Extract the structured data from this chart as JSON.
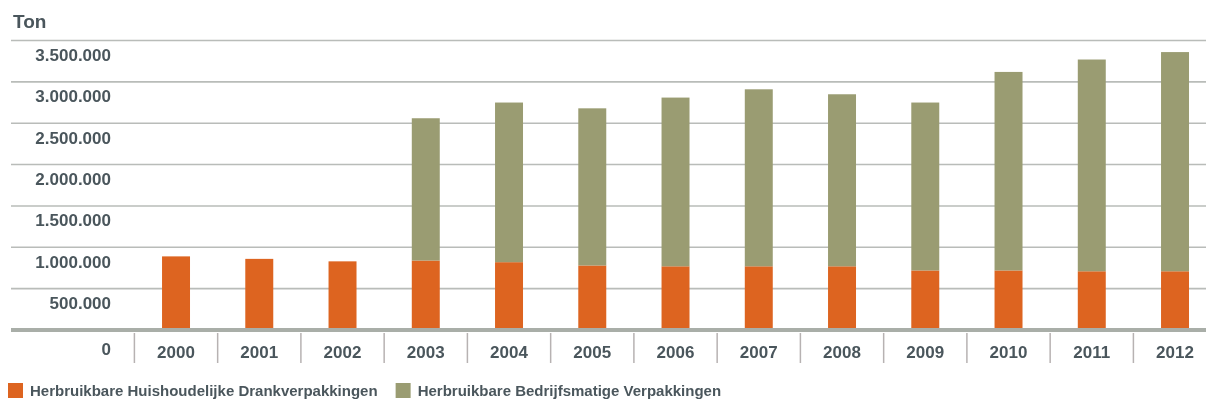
{
  "chart_data": {
    "type": "bar",
    "ylabel": "Ton",
    "categories": [
      "2000",
      "2001",
      "2002",
      "2003",
      "2004",
      "2005",
      "2006",
      "2007",
      "2008",
      "2009",
      "2010",
      "2011",
      "2012"
    ],
    "series": [
      {
        "name": "Herbruikbare Huishoudelijke Drankverpakkingen",
        "color": "#dd6420",
        "values": [
          890000,
          860000,
          830000,
          840000,
          820000,
          780000,
          770000,
          770000,
          770000,
          720000,
          720000,
          710000,
          710000
        ]
      },
      {
        "name": "Herbruikbare Bedrijfsmatige Verpakkingen",
        "color": "#9a9c72",
        "values": [
          null,
          null,
          null,
          1720000,
          1930000,
          1900000,
          2040000,
          2140000,
          2080000,
          2030000,
          2400000,
          2560000,
          2650000
        ]
      }
    ],
    "stacked": true,
    "ylim": [
      0,
      3500000
    ],
    "yticks": [
      {
        "value": 0,
        "label": "0"
      },
      {
        "value": 500000,
        "label": "500.000"
      },
      {
        "value": 1000000,
        "label": "1.000.000"
      },
      {
        "value": 1500000,
        "label": "1.500.000"
      },
      {
        "value": 2000000,
        "label": "2.000.000"
      },
      {
        "value": 2500000,
        "label": "2.500.000"
      },
      {
        "value": 3000000,
        "label": "3.000.000"
      },
      {
        "value": 3500000,
        "label": "3.500.000"
      }
    ],
    "grid": "y",
    "legend": "bottom left"
  }
}
